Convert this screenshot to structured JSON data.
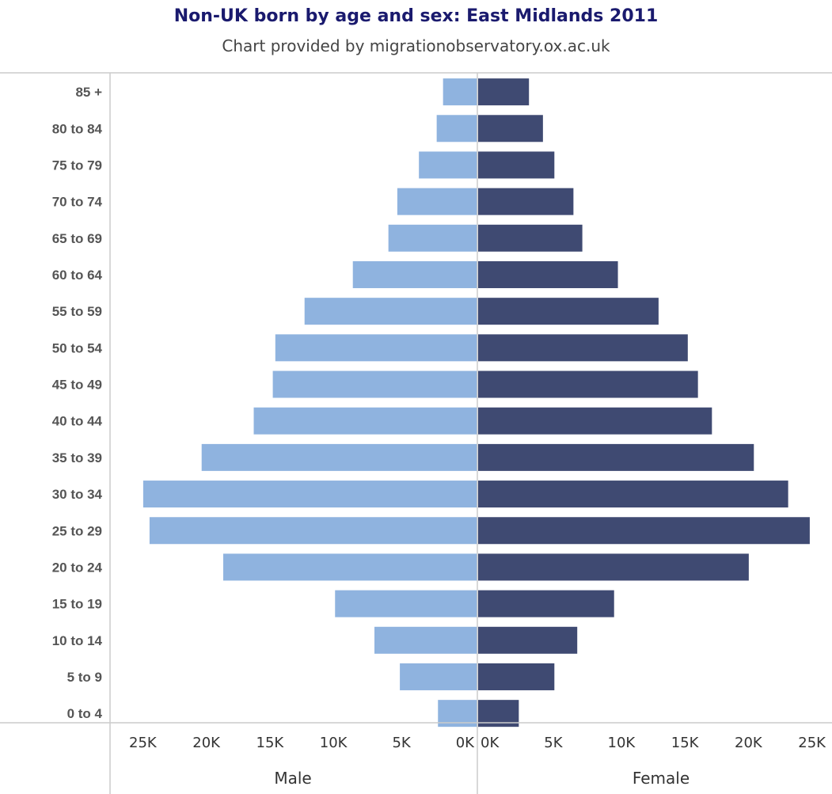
{
  "header": {
    "title": "Non-UK born by age and sex: East Midlands 2011",
    "subtitle": "Chart provided by migrationobservatory.ox.ac.uk"
  },
  "colors": {
    "title": "#1a1a6e",
    "male": "#8fb3df",
    "female": "#3f4a72",
    "axis_line": "#cccccc"
  },
  "chart_data": {
    "type": "bar",
    "orientation": "horizontal",
    "categories": [
      "85 +",
      "80 to 84",
      "75 to 79",
      "70 to 74",
      "65 to 69",
      "60 to 64",
      "55 to 59",
      "50 to 54",
      "45 to 49",
      "40 to 44",
      "35 to 39",
      "30 to 34",
      "25 to 29",
      "20 to 24",
      "15 to 19",
      "10 to 14",
      "5 to 9",
      "0 to 4"
    ],
    "series": [
      {
        "name": "Male",
        "values": [
          2700,
          3200,
          4600,
          6300,
          7000,
          9800,
          13600,
          15900,
          16100,
          17600,
          21700,
          26300,
          25800,
          20000,
          11200,
          8100,
          6100,
          3100
        ]
      },
      {
        "name": "Female",
        "values": [
          4000,
          5100,
          6000,
          7500,
          8200,
          11000,
          14200,
          16500,
          17300,
          18400,
          21700,
          24400,
          26100,
          21300,
          10700,
          7800,
          6000,
          3200
        ]
      }
    ],
    "xlim": [
      0,
      26500
    ],
    "ticks": [
      0,
      5000,
      10000,
      15000,
      20000,
      25000
    ],
    "tick_labels": [
      "0K",
      "5K",
      "10K",
      "15K",
      "20K",
      "25K"
    ],
    "male_axis_label": "Male",
    "female_axis_label": "Female",
    "grid": false
  }
}
